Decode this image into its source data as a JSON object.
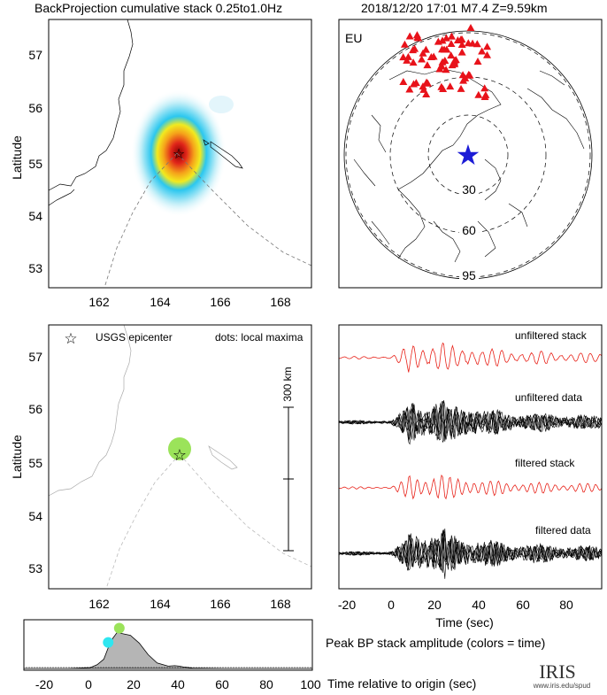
{
  "header": {
    "left_title": "BackProjection cumulative stack 0.25to1.0Hz",
    "right_title": "2018/12/20 17:01   M7.4  Z=9.59km"
  },
  "map_top": {
    "ylabel": "Latitude",
    "x_ticks": [
      "162",
      "164",
      "166",
      "168"
    ],
    "y_ticks": [
      "57",
      "56",
      "55",
      "54",
      "53"
    ]
  },
  "map_bottom": {
    "ylabel": "Latitude",
    "legend_epicenter": "USGS epicenter",
    "legend_dots": "dots: local maxima",
    "scale_label": "300 km",
    "x_ticks": [
      "162",
      "164",
      "166",
      "168"
    ],
    "y_ticks": [
      "57",
      "56",
      "55",
      "54",
      "53"
    ]
  },
  "globe": {
    "network_label": "EU",
    "ring_labels": [
      "30",
      "60",
      "95"
    ]
  },
  "traces": {
    "labels": [
      "unfiltered stack",
      "unfiltered data",
      "filtered stack",
      "filtered data"
    ],
    "x_ticks": [
      "-20",
      "0",
      "20",
      "40",
      "60",
      "80"
    ],
    "xlabel": "Time (sec)"
  },
  "amplitude": {
    "title": "Peak BP stack amplitude (colors = time)",
    "xlabel": "Time relative to origin (sec)",
    "x_ticks": [
      "-20",
      "0",
      "20",
      "40",
      "60",
      "80",
      "100"
    ]
  },
  "logo": {
    "name": "IRIS",
    "url": "www.iris.edu/spud"
  },
  "colors": {
    "trace_red": "#e8231a",
    "epicenter_star_blue": "#1b1bd6",
    "station_red": "#e8121a",
    "maxima_green": "#9be35a",
    "maxima_cyan": "#2fe6f0"
  },
  "chart_data": [
    {
      "type": "heatmap",
      "title": "BackProjection cumulative stack 0.25to1.0Hz",
      "ylabel": "Latitude",
      "xlim": [
        160.6,
        169
      ],
      "ylim": [
        52.6,
        57.6
      ],
      "peak": {
        "lon": 164.7,
        "lat": 55.15
      },
      "epicenter": {
        "lon": 164.7,
        "lat": 55.15
      }
    },
    {
      "type": "scatter",
      "ylabel": "Latitude",
      "xlim": [
        160.6,
        169
      ],
      "ylim": [
        52.6,
        57.6
      ],
      "local_maxima": [
        {
          "lon": 164.65,
          "lat": 55.22,
          "color": "#9be35a"
        }
      ],
      "epicenter": {
        "lon": 164.7,
        "lat": 55.1
      }
    },
    {
      "type": "line",
      "xlabel": "Time (sec)",
      "xlim": [
        -30,
        95
      ],
      "series": [
        {
          "name": "unfiltered stack"
        },
        {
          "name": "unfiltered data"
        },
        {
          "name": "filtered stack"
        },
        {
          "name": "filtered data"
        }
      ]
    },
    {
      "type": "area",
      "title": "Peak BP stack amplitude (colors = time)",
      "xlabel": "Time relative to origin (sec)",
      "xlim": [
        -30,
        100
      ],
      "x": [
        -30,
        -10,
        0,
        3,
        6,
        8,
        10,
        12,
        14,
        18,
        22,
        26,
        30,
        35,
        38,
        40,
        42,
        46,
        60,
        100
      ],
      "values": [
        0,
        0,
        0.02,
        0.08,
        0.2,
        0.45,
        0.65,
        0.78,
        0.76,
        0.72,
        0.55,
        0.3,
        0.12,
        0.05,
        0.06,
        0.05,
        0.03,
        0.01,
        0,
        0
      ],
      "maxima": [
        {
          "x": 8,
          "color": "#2fe6f0"
        },
        {
          "x": 13,
          "color": "#9be35a"
        }
      ]
    }
  ]
}
